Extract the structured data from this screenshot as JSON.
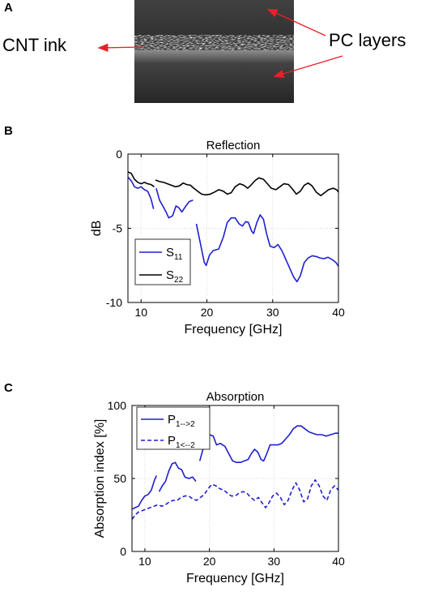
{
  "panel_a": {
    "letter": "A",
    "label_left": "CNT ink",
    "label_right": "PC layers"
  },
  "chart_data": [
    {
      "panel": "B",
      "type": "line",
      "title": "Reflection",
      "xlabel": "Frequency [GHz]",
      "ylabel": "dB",
      "xlim": [
        8,
        40
      ],
      "ylim": [
        -10,
        0
      ],
      "xticks": [
        10,
        20,
        30,
        40
      ],
      "yticks": [
        0,
        -5,
        -10
      ],
      "grid": true,
      "legend": "bottom-left",
      "series": [
        {
          "name": "S11",
          "label_base": "S",
          "label_sub": "11",
          "color": "#1f1fd1",
          "dash": "solid",
          "segments": [
            [
              [
                8.0,
                -1.55
              ],
              [
                8.5,
                -1.8
              ],
              [
                9.0,
                -2.2
              ],
              [
                9.5,
                -2.3
              ],
              [
                10.0,
                -2.2
              ],
              [
                10.5,
                -2.4
              ],
              [
                11.0,
                -2.5
              ],
              [
                11.5,
                -3.0
              ],
              [
                11.9,
                -3.7
              ]
            ],
            [
              [
                12.3,
                -2.3
              ],
              [
                12.8,
                -3.1
              ],
              [
                13.3,
                -3.5
              ],
              [
                13.8,
                -3.9
              ],
              [
                14.2,
                -4.3
              ],
              [
                14.8,
                -4.15
              ],
              [
                15.3,
                -3.5
              ],
              [
                15.7,
                -3.6
              ],
              [
                16.2,
                -3.9
              ],
              [
                16.8,
                -3.5
              ],
              [
                17.3,
                -3.2
              ],
              [
                17.9,
                -3.1
              ]
            ],
            [
              [
                18.4,
                -4.7
              ],
              [
                19.0,
                -6.0
              ],
              [
                19.6,
                -7.3
              ],
              [
                19.9,
                -7.5
              ],
              [
                20.4,
                -6.8
              ],
              [
                21.0,
                -6.5
              ],
              [
                21.8,
                -6.4
              ],
              [
                22.5,
                -5.6
              ],
              [
                23.1,
                -4.6
              ],
              [
                23.7,
                -4.3
              ],
              [
                24.3,
                -4.3
              ],
              [
                24.9,
                -4.7
              ],
              [
                25.4,
                -4.85
              ],
              [
                25.9,
                -4.55
              ],
              [
                26.3,
                -4.6
              ],
              [
                26.8,
                -5.2
              ],
              [
                27.1,
                -5.35
              ],
              [
                27.6,
                -4.6
              ],
              [
                28.1,
                -4.1
              ],
              [
                28.6,
                -4.4
              ],
              [
                29.1,
                -5.4
              ],
              [
                29.6,
                -6.2
              ],
              [
                30.2,
                -6.3
              ],
              [
                30.8,
                -6.1
              ],
              [
                31.4,
                -6.5
              ],
              [
                32.0,
                -7.1
              ],
              [
                32.6,
                -7.7
              ],
              [
                33.2,
                -8.3
              ],
              [
                33.7,
                -8.6
              ],
              [
                34.2,
                -8.2
              ],
              [
                34.8,
                -7.3
              ],
              [
                35.4,
                -7.0
              ],
              [
                36.0,
                -6.85
              ],
              [
                36.6,
                -6.9
              ],
              [
                37.2,
                -7.0
              ],
              [
                37.8,
                -7.05
              ],
              [
                38.4,
                -6.95
              ],
              [
                39.0,
                -7.1
              ],
              [
                39.6,
                -7.3
              ],
              [
                40.0,
                -7.55
              ]
            ]
          ]
        },
        {
          "name": "S22",
          "label_base": "S",
          "label_sub": "22",
          "color": "#000000",
          "dash": "solid",
          "segments": [
            [
              [
                8.0,
                -1.2
              ],
              [
                8.5,
                -1.3
              ],
              [
                9.0,
                -1.7
              ],
              [
                9.5,
                -1.9
              ],
              [
                10.0,
                -2.0
              ],
              [
                10.5,
                -1.9
              ],
              [
                11.0,
                -2.0
              ],
              [
                11.5,
                -2.05
              ],
              [
                12.0,
                -2.2
              ]
            ],
            [
              [
                12.2,
                -1.75
              ],
              [
                12.8,
                -1.85
              ],
              [
                13.4,
                -1.9
              ],
              [
                14.0,
                -2.0
              ],
              [
                14.6,
                -2.1
              ],
              [
                15.2,
                -2.2
              ],
              [
                15.8,
                -2.15
              ],
              [
                16.4,
                -1.95
              ],
              [
                16.9,
                -2.05
              ],
              [
                17.5,
                -2.1
              ],
              [
                18.0,
                -2.3
              ],
              [
                18.6,
                -2.5
              ],
              [
                19.2,
                -2.7
              ],
              [
                19.8,
                -2.75
              ],
              [
                20.5,
                -2.7
              ],
              [
                21.2,
                -2.55
              ],
              [
                21.8,
                -2.4
              ],
              [
                22.5,
                -2.5
              ],
              [
                23.1,
                -2.7
              ],
              [
                23.7,
                -2.6
              ],
              [
                24.3,
                -2.2
              ],
              [
                25.0,
                -2.0
              ],
              [
                25.6,
                -2.1
              ],
              [
                26.2,
                -2.3
              ],
              [
                26.7,
                -2.1
              ],
              [
                27.3,
                -1.8
              ],
              [
                27.9,
                -1.6
              ],
              [
                28.6,
                -1.7
              ],
              [
                29.2,
                -2.0
              ],
              [
                29.8,
                -2.3
              ],
              [
                30.5,
                -2.4
              ],
              [
                31.1,
                -2.2
              ],
              [
                31.7,
                -2.0
              ],
              [
                32.4,
                -2.05
              ],
              [
                33.0,
                -2.35
              ],
              [
                33.6,
                -2.7
              ],
              [
                34.2,
                -2.5
              ],
              [
                34.8,
                -2.1
              ],
              [
                35.4,
                -1.95
              ],
              [
                36.0,
                -2.15
              ],
              [
                36.6,
                -2.55
              ],
              [
                37.3,
                -2.8
              ],
              [
                37.9,
                -2.6
              ],
              [
                38.5,
                -2.4
              ],
              [
                39.2,
                -2.3
              ],
              [
                39.7,
                -2.4
              ],
              [
                40.0,
                -2.55
              ]
            ]
          ]
        }
      ]
    },
    {
      "panel": "C",
      "type": "line",
      "title": "Absorption",
      "xlabel": "Frequency [GHz]",
      "ylabel": "Absorption index [%]",
      "xlim": [
        8,
        40
      ],
      "ylim": [
        0,
        100
      ],
      "xticks": [
        10,
        20,
        30,
        40
      ],
      "yticks": [
        0,
        50,
        100
      ],
      "grid": true,
      "legend": "top-left",
      "series": [
        {
          "name": "P1-->2",
          "label_base": "P",
          "label_sub": "1-->2",
          "color": "#1f1fd1",
          "dash": "solid",
          "segments": [
            [
              [
                8.0,
                29
              ],
              [
                8.5,
                30
              ],
              [
                9.0,
                31
              ],
              [
                9.5,
                35
              ],
              [
                10.0,
                38
              ],
              [
                10.5,
                39
              ],
              [
                11.0,
                42
              ],
              [
                11.5,
                49
              ],
              [
                11.8,
                52
              ]
            ],
            [
              [
                12.2,
                41
              ],
              [
                12.7,
                45
              ],
              [
                13.2,
                48
              ],
              [
                13.7,
                55
              ],
              [
                14.2,
                60
              ],
              [
                14.7,
                61
              ],
              [
                15.2,
                57
              ],
              [
                15.7,
                56
              ],
              [
                16.2,
                51
              ],
              [
                16.8,
                50
              ],
              [
                17.4,
                51
              ],
              [
                17.9,
                48
              ]
            ],
            [
              [
                18.5,
                62
              ],
              [
                19.0,
                70
              ],
              [
                19.5,
                77
              ],
              [
                20.0,
                80
              ],
              [
                20.6,
                79
              ],
              [
                21.1,
                73
              ],
              [
                21.7,
                74
              ],
              [
                22.4,
                72
              ],
              [
                23.0,
                67
              ],
              [
                23.6,
                62
              ],
              [
                24.2,
                61
              ],
              [
                24.8,
                61
              ],
              [
                25.4,
                62
              ],
              [
                26.0,
                63
              ],
              [
                26.5,
                67
              ],
              [
                27.0,
                70
              ],
              [
                27.5,
                68
              ],
              [
                28.0,
                63
              ],
              [
                28.4,
                62
              ],
              [
                28.9,
                67
              ],
              [
                29.4,
                73
              ],
              [
                30.0,
                73
              ],
              [
                30.6,
                73
              ],
              [
                31.2,
                74
              ],
              [
                31.8,
                77
              ],
              [
                32.4,
                80
              ],
              [
                33.0,
                84
              ],
              [
                33.6,
                86
              ],
              [
                34.2,
                86
              ],
              [
                34.8,
                84
              ],
              [
                35.4,
                82
              ],
              [
                36.0,
                81
              ],
              [
                36.7,
                80
              ],
              [
                37.4,
                80
              ],
              [
                38.1,
                79
              ],
              [
                38.8,
                80
              ],
              [
                39.5,
                81
              ],
              [
                40.0,
                81
              ]
            ]
          ]
        },
        {
          "name": "P1<--2",
          "label_base": "P",
          "label_sub": "1<--2",
          "color": "#1f1fd1",
          "dash": "dashed",
          "segments": [
            [
              [
                8.0,
                22
              ],
              [
                8.5,
                25
              ],
              [
                9.0,
                27
              ],
              [
                9.6,
                28
              ],
              [
                10.2,
                29
              ],
              [
                10.8,
                30
              ],
              [
                11.4,
                31
              ],
              [
                12.0,
                32
              ],
              [
                12.6,
                31
              ],
              [
                13.2,
                32
              ],
              [
                13.8,
                34
              ],
              [
                14.4,
                35
              ],
              [
                15.0,
                35
              ],
              [
                15.6,
                37
              ],
              [
                16.2,
                38
              ],
              [
                16.8,
                38
              ],
              [
                17.4,
                36
              ],
              [
                18.0,
                35
              ],
              [
                18.6,
                37
              ],
              [
                19.2,
                39
              ],
              [
                19.8,
                43
              ],
              [
                20.4,
                46
              ],
              [
                21.0,
                45
              ],
              [
                21.6,
                43
              ],
              [
                22.2,
                42
              ],
              [
                22.8,
                40
              ],
              [
                23.4,
                38
              ],
              [
                24.0,
                38
              ],
              [
                24.6,
                40
              ],
              [
                25.2,
                41
              ],
              [
                25.8,
                40
              ],
              [
                26.4,
                37
              ],
              [
                27.0,
                35
              ],
              [
                27.6,
                37
              ],
              [
                28.2,
                33
              ],
              [
                28.7,
                30
              ],
              [
                29.2,
                33
              ],
              [
                29.8,
                38
              ],
              [
                30.4,
                40
              ],
              [
                31.0,
                37
              ],
              [
                31.6,
                32
              ],
              [
                32.2,
                35
              ],
              [
                32.8,
                42
              ],
              [
                33.4,
                47
              ],
              [
                34.0,
                42
              ],
              [
                34.6,
                34
              ],
              [
                35.2,
                36
              ],
              [
                35.8,
                45
              ],
              [
                36.4,
                49
              ],
              [
                37.0,
                45
              ],
              [
                37.6,
                38
              ],
              [
                38.2,
                35
              ],
              [
                38.8,
                42
              ],
              [
                39.4,
                45
              ],
              [
                40.0,
                42
              ]
            ]
          ]
        }
      ]
    }
  ]
}
